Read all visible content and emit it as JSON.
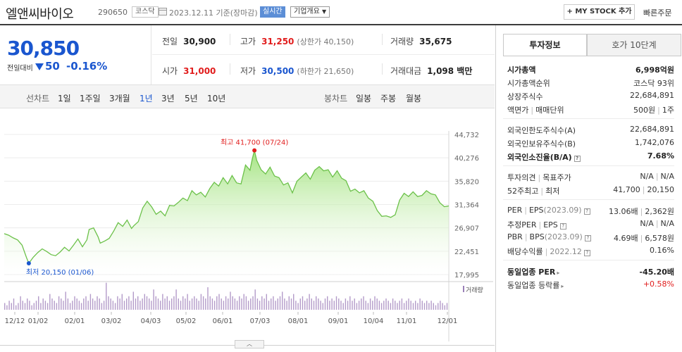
{
  "header": {
    "company_name": "엘앤씨바이오",
    "code": "290650",
    "market": "코스닥",
    "date": "2023.12.11 기준(장마감)",
    "live_badge": "실시간",
    "company_info": "기업개요",
    "mystock_button": "+ MY STOCK 추가",
    "quick_order": "빠른주문"
  },
  "price": {
    "current": "30,850",
    "change_label": "전일대비",
    "change": "50",
    "change_pct": "-0.16%"
  },
  "quote": {
    "prev_close_label": "전일",
    "prev_close": "30,900",
    "high_label": "고가",
    "high": "31,250",
    "upper_limit": "(상한가 40,150)",
    "volume_label": "거래량",
    "volume": "35,675",
    "open_label": "시가",
    "open": "31,000",
    "low_label": "저가",
    "low": "30,500",
    "lower_limit": "(하한가 21,650)",
    "trade_value_label": "거래대금",
    "trade_value": "1,098 백만"
  },
  "chart_tabs": {
    "line_label": "선차트",
    "periods": [
      "1일",
      "1주일",
      "3개월",
      "1년",
      "3년",
      "5년",
      "10년"
    ],
    "active_period": "1년",
    "candle_label": "봉차트",
    "candles": [
      "일봉",
      "주봉",
      "월봉"
    ]
  },
  "chart_data": {
    "type": "area",
    "y_ticks": [
      "44,732",
      "40,276",
      "35,820",
      "31,364",
      "26,907",
      "22,451",
      "17,995"
    ],
    "ylim": [
      17995,
      44732
    ],
    "x_ticks": [
      "12/12",
      "01/02",
      "02/01",
      "03/02",
      "04/03",
      "05/02",
      "06/01",
      "07/03",
      "08/01",
      "09/01",
      "10/04",
      "11/01",
      "12/01"
    ],
    "high_annotation": "최고 41,700 (07/24)",
    "low_annotation": "최저 20,150 (01/06)",
    "volume_label": "거래량",
    "price_series": [
      [
        0,
        25800
      ],
      [
        2,
        25500
      ],
      [
        4,
        25000
      ],
      [
        6,
        24600
      ],
      [
        8,
        23600
      ],
      [
        9,
        22400
      ],
      [
        10,
        21200
      ],
      [
        11,
        20150
      ],
      [
        13,
        21300
      ],
      [
        15,
        22200
      ],
      [
        17,
        22900
      ],
      [
        19,
        22400
      ],
      [
        21,
        21800
      ],
      [
        23,
        21600
      ],
      [
        25,
        22300
      ],
      [
        27,
        23200
      ],
      [
        29,
        22500
      ],
      [
        31,
        23600
      ],
      [
        33,
        24800
      ],
      [
        35,
        23300
      ],
      [
        37,
        24600
      ],
      [
        38,
        26600
      ],
      [
        40,
        26900
      ],
      [
        42,
        25200
      ],
      [
        43,
        24000
      ],
      [
        45,
        24400
      ],
      [
        47,
        24900
      ],
      [
        49,
        26300
      ],
      [
        51,
        27900
      ],
      [
        53,
        27200
      ],
      [
        55,
        28400
      ],
      [
        57,
        26800
      ],
      [
        58,
        27300
      ],
      [
        60,
        28100
      ],
      [
        62,
        30700
      ],
      [
        64,
        32000
      ],
      [
        66,
        30900
      ],
      [
        68,
        29500
      ],
      [
        70,
        30100
      ],
      [
        72,
        29200
      ],
      [
        74,
        31200
      ],
      [
        76,
        31100
      ],
      [
        78,
        31800
      ],
      [
        80,
        32600
      ],
      [
        82,
        32100
      ],
      [
        84,
        34000
      ],
      [
        86,
        33200
      ],
      [
        88,
        33700
      ],
      [
        90,
        32800
      ],
      [
        92,
        34400
      ],
      [
        94,
        35600
      ],
      [
        96,
        34900
      ],
      [
        98,
        36500
      ],
      [
        100,
        35300
      ],
      [
        102,
        36900
      ],
      [
        104,
        35500
      ],
      [
        106,
        35300
      ],
      [
        108,
        38900
      ],
      [
        110,
        37900
      ],
      [
        111,
        40000
      ],
      [
        112,
        41700
      ],
      [
        113,
        39800
      ],
      [
        115,
        38000
      ],
      [
        117,
        37200
      ],
      [
        119,
        38500
      ],
      [
        121,
        36800
      ],
      [
        123,
        36500
      ],
      [
        125,
        35100
      ],
      [
        127,
        35500
      ],
      [
        129,
        33600
      ],
      [
        131,
        35800
      ],
      [
        133,
        36600
      ],
      [
        135,
        37400
      ],
      [
        137,
        36200
      ],
      [
        139,
        37900
      ],
      [
        141,
        38600
      ],
      [
        143,
        37800
      ],
      [
        145,
        38000
      ],
      [
        147,
        36600
      ],
      [
        149,
        37800
      ],
      [
        151,
        36400
      ],
      [
        153,
        35900
      ],
      [
        155,
        33900
      ],
      [
        157,
        34300
      ],
      [
        159,
        33600
      ],
      [
        161,
        34000
      ],
      [
        163,
        32600
      ],
      [
        165,
        32000
      ],
      [
        167,
        30200
      ],
      [
        169,
        29100
      ],
      [
        171,
        29200
      ],
      [
        173,
        28900
      ],
      [
        175,
        29400
      ],
      [
        177,
        32200
      ],
      [
        179,
        33500
      ],
      [
        181,
        32900
      ],
      [
        183,
        33800
      ],
      [
        185,
        32900
      ],
      [
        187,
        33100
      ],
      [
        189,
        34000
      ],
      [
        191,
        33400
      ],
      [
        193,
        33200
      ],
      [
        195,
        31700
      ],
      [
        197,
        30950
      ],
      [
        199,
        31100
      ]
    ],
    "price_x_range": [
      0,
      199
    ],
    "volume_series": [
      3,
      2,
      4,
      3,
      5,
      2,
      3,
      6,
      4,
      3,
      5,
      4,
      2,
      3,
      4,
      6,
      3,
      5,
      4,
      3,
      7,
      5,
      4,
      3,
      6,
      5,
      4,
      8,
      5,
      3,
      4,
      6,
      5,
      4,
      3,
      5,
      6,
      4,
      7,
      5,
      4,
      6,
      5,
      3,
      4,
      12,
      6,
      5,
      4,
      3,
      6,
      5,
      7,
      4,
      5,
      6,
      4,
      8,
      5,
      6,
      4,
      5,
      7,
      6,
      5,
      4,
      9,
      6,
      5,
      4,
      7,
      5,
      6,
      4,
      5,
      6,
      9,
      5,
      4,
      6,
      5,
      7,
      4,
      5,
      6,
      5,
      4,
      7,
      6,
      5,
      10,
      6,
      5,
      4,
      6,
      7,
      5,
      4,
      6,
      5,
      8,
      6,
      5,
      4,
      6,
      5,
      7,
      6,
      4,
      5,
      6,
      9,
      5,
      4,
      6,
      5,
      7,
      4,
      5,
      6,
      4,
      5,
      6,
      8,
      5,
      4,
      6,
      5,
      7,
      4,
      3,
      5,
      6,
      4,
      5,
      7,
      5,
      4,
      6,
      5,
      4,
      3,
      5,
      6,
      4,
      5,
      4,
      6,
      5,
      4,
      3,
      5,
      4,
      6,
      4,
      5,
      3,
      4,
      5,
      6,
      4,
      3,
      5,
      4,
      6,
      5,
      4,
      3,
      4,
      5,
      4,
      3,
      5,
      4,
      3,
      4,
      5,
      3,
      4,
      5,
      4,
      3,
      4,
      3,
      5,
      4,
      3,
      4,
      3,
      4,
      3,
      2,
      3,
      4,
      3,
      2,
      3
    ]
  },
  "right_panel": {
    "tab_active": "투자정보",
    "tab_inactive": "호가 10단계",
    "market_cap_label": "시가총액",
    "market_cap": "6,998억원",
    "market_cap_rank_label": "시가총액순위",
    "market_cap_rank": "코스닥 93위",
    "shares_label": "상장주식수",
    "shares": "22,684,891",
    "face_value_label": "액면가",
    "trade_unit_label": "매매단위",
    "face_value": "500원",
    "trade_unit": "1주",
    "foreign_limit_label": "외국인한도주식수(A)",
    "foreign_limit": "22,684,891",
    "foreign_holding_label": "외국인보유주식수(B)",
    "foreign_holding": "1,742,076",
    "foreign_ratio_label": "외국인소진율(B/A)",
    "foreign_ratio": "7.68%",
    "opinion_label": "투자의견",
    "target_label": "목표주가",
    "opinion": "N/A",
    "target": "N/A",
    "week52_high_label": "52주최고",
    "week52_low_label": "최저",
    "week52_high": "41,700",
    "week52_low": "20,150",
    "per_label": "PER",
    "eps_label": "EPS",
    "per_eps_period": "(2023.09)",
    "per": "13.06배",
    "eps": "2,362원",
    "est_per_label": "추정PER",
    "est_eps_label": "EPS",
    "est_per": "N/A",
    "est_eps": "N/A",
    "pbr_label": "PBR",
    "bps_label": "BPS",
    "pbr_bps_period": "(2023.09)",
    "pbr": "4.69배",
    "bps": "6,578원",
    "dividend_label": "배당수익률",
    "dividend_period": "2022.12",
    "dividend": "0.16%",
    "sector_per_label": "동일업종 PER",
    "sector_per": "-45.20배",
    "sector_change_label": "동일업종 등락률",
    "sector_change": "+0.58%"
  }
}
